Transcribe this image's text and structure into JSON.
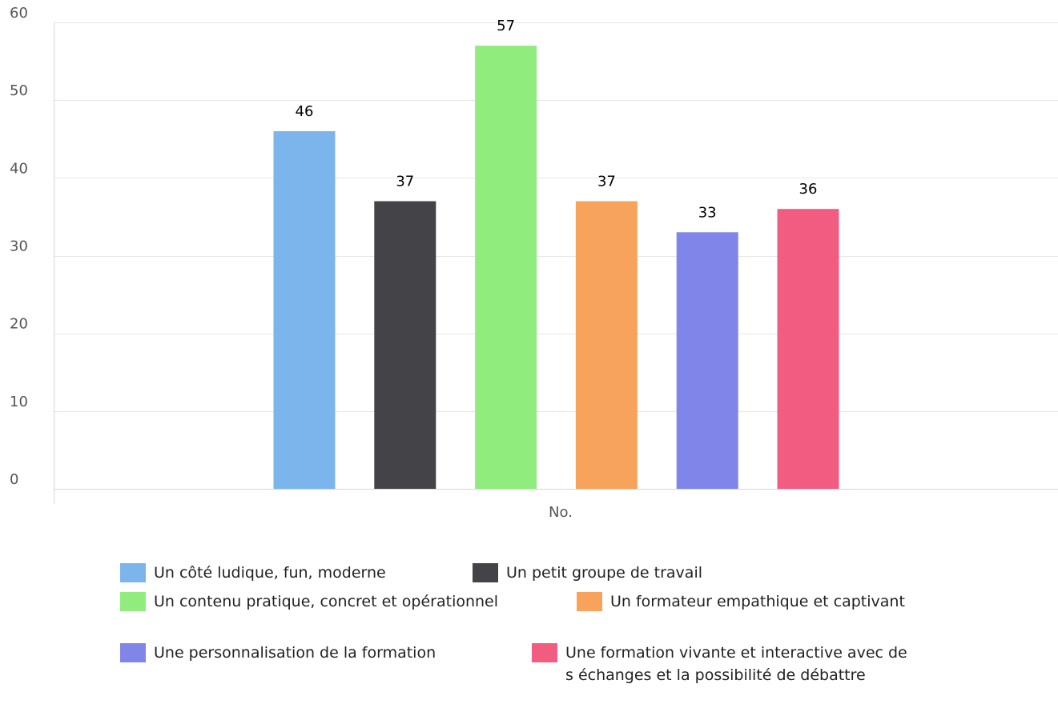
{
  "chart_data": {
    "type": "bar",
    "title": "",
    "xlabel": "",
    "ylabel": "",
    "categories": [
      "No."
    ],
    "ylim": [
      0,
      60
    ],
    "yticks": [
      0,
      10,
      20,
      30,
      40,
      50,
      60
    ],
    "grid": true,
    "legend_position": "bottom",
    "series": [
      {
        "name": "Un côté ludique, fun, moderne",
        "values": [
          46
        ],
        "color": "#7cb5ec"
      },
      {
        "name": "Un petit groupe de travail",
        "values": [
          37
        ],
        "color": "#434348"
      },
      {
        "name": "Un contenu pratique, concret et opérationnel",
        "values": [
          57
        ],
        "color": "#90ed7d"
      },
      {
        "name": "Un formateur empathique et captivant",
        "values": [
          37
        ],
        "color": "#f7a35c"
      },
      {
        "name": "Une personnalisation de la formation",
        "values": [
          33
        ],
        "color": "#8085e9"
      },
      {
        "name": "Une formation vivante et interactive avec des échanges et la possibilité de débattre",
        "values": [
          36
        ],
        "color": "#f15c80"
      }
    ]
  }
}
